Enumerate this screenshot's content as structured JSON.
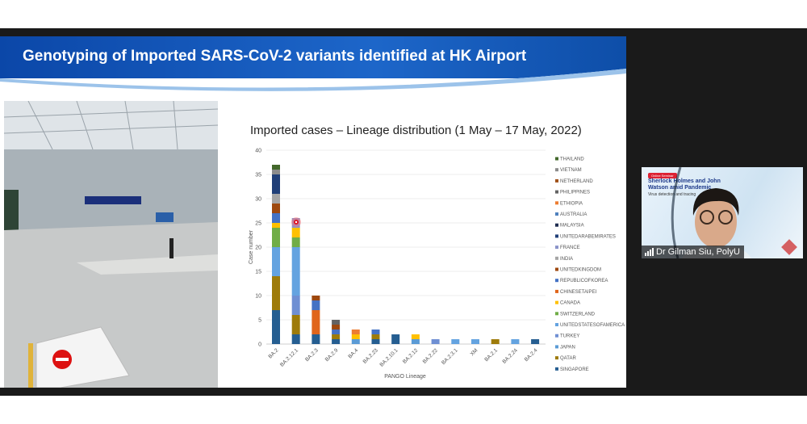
{
  "slide": {
    "title": "Genotyping of Imported SARS-CoV-2 variants identified at HK Airport"
  },
  "webcam": {
    "participant_name": "Dr Gilman Siu, PolyU",
    "background_badge": "Online Seminar",
    "background_title": "Sherlock Holmes and John Watson amid Pandemic",
    "background_subtitle": "Virus detection and tracing"
  },
  "chart_data": {
    "type": "bar",
    "stacked": true,
    "title": "Imported cases – Lineage distribution (1 May – 17 May, 2022)",
    "xlabel": "PANGO Lineage",
    "ylabel": "Case number",
    "ylim": [
      0,
      40
    ],
    "yticks": [
      0,
      5,
      10,
      15,
      20,
      25,
      30,
      35,
      40
    ],
    "grid": true,
    "legend_position": "right",
    "categories": [
      "BA.2",
      "BA.2.12.1",
      "BA.2.3",
      "BA.2.9",
      "BA.4",
      "BA.2.23",
      "BA.2.10.1",
      "BA.2.12",
      "BA.2.22",
      "BA.2.3.1",
      "XM",
      "BA.2.1",
      "BA.2.24",
      "BA.2.4"
    ],
    "series": [
      {
        "name": "SINGAPORE",
        "color": "#255e91",
        "values": [
          7,
          2,
          2,
          1,
          0,
          1,
          2,
          0,
          0,
          0,
          0,
          0,
          0,
          1
        ]
      },
      {
        "name": "QATAR",
        "color": "#9e7b0a",
        "values": [
          7,
          4,
          0,
          1,
          0,
          1,
          0,
          0,
          0,
          0,
          0,
          1,
          0,
          0
        ]
      },
      {
        "name": "JAPAN",
        "color": "#5b9bd5",
        "values": [
          0,
          0,
          0,
          0,
          1,
          0,
          0,
          1,
          0,
          0,
          0,
          0,
          0,
          0
        ]
      },
      {
        "name": "TURKEY",
        "color": "#6f8fd3",
        "values": [
          0,
          4,
          0,
          0,
          0,
          0,
          0,
          0,
          1,
          0,
          0,
          0,
          0,
          0
        ]
      },
      {
        "name": "UNITEDSTATESOFAMERICA",
        "color": "#64a3e0",
        "values": [
          6,
          10,
          0,
          0,
          0,
          0,
          0,
          0,
          0,
          1,
          1,
          0,
          1,
          0
        ]
      },
      {
        "name": "SWITZERLAND",
        "color": "#70ad47",
        "values": [
          4,
          2,
          0,
          0,
          0,
          0,
          0,
          0,
          0,
          0,
          0,
          0,
          0,
          0
        ]
      },
      {
        "name": "CANADA",
        "color": "#ffc000",
        "values": [
          1,
          2,
          0,
          0,
          1,
          0,
          0,
          1,
          0,
          0,
          0,
          0,
          0,
          0
        ]
      },
      {
        "name": "CHINESETAIPEI",
        "color": "#e0651b",
        "values": [
          0,
          0,
          5,
          0,
          0,
          0,
          0,
          0,
          0,
          0,
          0,
          0,
          0,
          0
        ]
      },
      {
        "name": "REPUBLICOFKOREA",
        "color": "#4472c4",
        "values": [
          2,
          0,
          2,
          1,
          0,
          1,
          0,
          0,
          0,
          0,
          0,
          0,
          0,
          0
        ]
      },
      {
        "name": "UNITEDKINGDOM",
        "color": "#9e480e",
        "values": [
          2,
          0,
          1,
          1,
          0,
          0,
          0,
          0,
          0,
          0,
          0,
          0,
          0,
          0
        ]
      },
      {
        "name": "INDIA",
        "color": "#a5a5a5",
        "values": [
          2,
          0,
          0,
          0,
          0,
          0,
          0,
          0,
          0,
          0,
          0,
          0,
          0,
          0
        ]
      },
      {
        "name": "FRANCE",
        "color": "#8a93c9",
        "values": [
          0,
          2,
          0,
          0,
          0,
          0,
          0,
          0,
          0,
          0,
          0,
          0,
          0,
          0
        ]
      },
      {
        "name": "UNITEDARABEMIRATES",
        "color": "#203f78",
        "values": [
          4,
          0,
          0,
          0,
          0,
          0,
          0,
          0,
          0,
          0,
          0,
          0,
          0,
          0
        ]
      },
      {
        "name": "MALAYSIA",
        "color": "#1f2d50",
        "values": [
          0,
          0,
          0,
          0,
          0,
          0,
          0,
          0,
          0,
          0,
          0,
          0,
          0,
          0
        ]
      },
      {
        "name": "AUSTRALIA",
        "color": "#4f81bd",
        "values": [
          0,
          0,
          0,
          0,
          0,
          0,
          0,
          0,
          0,
          0,
          0,
          0,
          0,
          0
        ]
      },
      {
        "name": "ETHIOPIA",
        "color": "#ed7d31",
        "values": [
          0,
          0,
          0,
          0,
          1,
          0,
          0,
          0,
          0,
          0,
          0,
          0,
          0,
          0
        ]
      },
      {
        "name": "PHILIPPINES",
        "color": "#636363",
        "values": [
          0,
          0,
          0,
          1,
          0,
          0,
          0,
          0,
          0,
          0,
          0,
          0,
          0,
          0
        ]
      },
      {
        "name": "NETHERLAND",
        "color": "#a0521a",
        "values": [
          0,
          0,
          0,
          0,
          0,
          0,
          0,
          0,
          0,
          0,
          0,
          0,
          0,
          0
        ]
      },
      {
        "name": "VIETNAM",
        "color": "#8c8c8c",
        "values": [
          1,
          0,
          0,
          0,
          0,
          0,
          0,
          0,
          0,
          0,
          0,
          0,
          0,
          0
        ]
      },
      {
        "name": "THAILAND",
        "color": "#43682b",
        "values": [
          1,
          0,
          0,
          0,
          0,
          0,
          0,
          0,
          0,
          0,
          0,
          0,
          0,
          0
        ]
      }
    ]
  }
}
